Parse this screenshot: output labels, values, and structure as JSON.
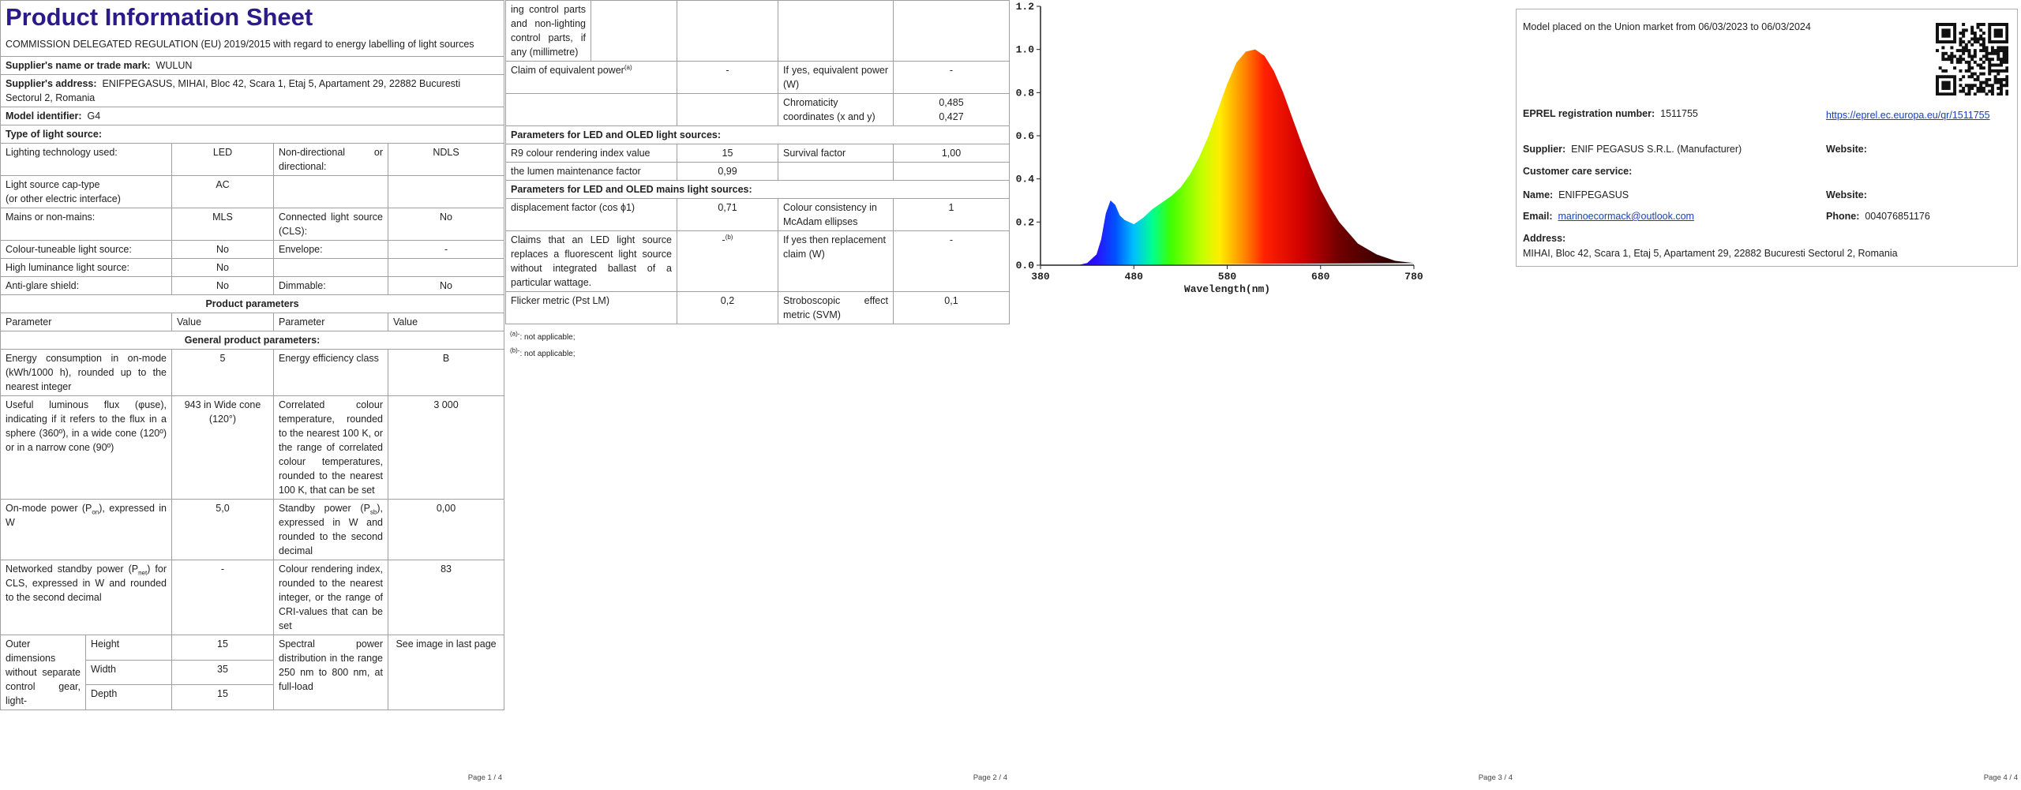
{
  "page1": {
    "title": "Product Information Sheet",
    "regulation": "COMMISSION DELEGATED REGULATION (EU) 2019/2015 with regard to energy labelling of light sources",
    "supplier_name": {
      "label": "Supplier's name or trade mark:",
      "value": "WULUN"
    },
    "supplier_address": {
      "label": "Supplier's address:",
      "value": "ENIFPEGASUS, MIHAI, Bloc 42, Scara 1, Etaj 5, Apartament 29, 22882 Bucuresti Sectorul 2, Romania"
    },
    "model_identifier": {
      "label": "Model identifier:",
      "value": "G4"
    },
    "type_heading": "Type of light source:",
    "type_rows": [
      [
        "Lighting technology used:",
        "LED",
        "Non-directional or directional:",
        "NDLS"
      ],
      [
        [
          "Light source cap-type",
          "(or other electric interface)"
        ],
        "AC"
      ],
      [
        "Mains or non-mains:",
        "MLS",
        "Connected light source (CLS):",
        "No"
      ],
      [
        "Colour-tuneable light source:",
        "No",
        "Envelope:",
        "-"
      ],
      [
        "High luminance light source:",
        "No"
      ],
      [
        "Anti-glare shield:",
        "No",
        "Dimmable:",
        "No"
      ]
    ],
    "product_heading": "Product parameters",
    "param_header": [
      "Parameter",
      "Value",
      "Parameter",
      "Value"
    ],
    "general_heading": "General product parameters:",
    "params": [
      [
        "Energy consumption in on-mode (kWh/1000 h), rounded up to the nearest integer",
        "5",
        "Energy efficiency class",
        "B"
      ],
      [
        "Useful luminous flux (φuse), indicating if it refers to the flux in a sphere (360º), in a wide cone (120º) or in a narrow cone (90º)",
        "943 in Wide cone (120°)",
        "Correlated colour temperature, rounded to the nearest 100 K, or the range of correlated colour temperatures, rounded to the nearest 100 K, that can be set",
        "3 000"
      ],
      [
        [
          "On-mode power (P",
          "on",
          "), expressed in W"
        ],
        "5,0",
        [
          "Standby power (P",
          "sb",
          "), expressed in W and rounded to the second decimal"
        ],
        "0,00"
      ],
      [
        [
          "Networked standby power (P",
          "net",
          ") for CLS, expressed in W and rounded to the second decimal"
        ],
        "-",
        "Colour rendering index, rounded to the nearest integer, or the range of CRI-values that can be set",
        "83"
      ]
    ],
    "dimensions": {
      "label": "Outer dimensions without separate control gear, light-",
      "items": [
        [
          "Height",
          "15"
        ],
        [
          "Width",
          "35"
        ],
        [
          "Depth",
          "15"
        ]
      ],
      "spd_label": "Spectral power distribution in the range 250 nm to 800 nm, at full-load",
      "spd_value": "See image in last page"
    },
    "footer": "Page 1 / 4"
  },
  "page2": {
    "continuation": "ing control parts and non-lighting control parts, if any (millimetre)",
    "claim_row": [
      [
        "Claim of equivalent power",
        "(a)"
      ],
      "-",
      "If yes, equivalent power (W)",
      "-"
    ],
    "chromaticity": {
      "label": "Chromaticity coordinates (x and y)",
      "values": [
        "0,485",
        "0,427"
      ]
    },
    "led_heading": "Parameters for LED and OLED light sources:",
    "led_rows": [
      [
        "R9 colour rendering index value",
        "15",
        "Survival factor",
        "1,00"
      ],
      [
        "the lumen maintenance factor",
        "0,99"
      ]
    ],
    "mains_heading": "Parameters for LED and OLED mains light sources:",
    "mains_rows": [
      [
        "displacement factor (cos ϕ1)",
        "0,71",
        "Colour consistency in McAdam ellipses",
        "1"
      ],
      [
        "Claims that an LED light source replaces a fluorescent light source without integrated ballast of a particular wattage.",
        [
          "-",
          "(b)"
        ],
        "If yes then replacement claim (W)",
        "-"
      ],
      [
        "Flicker metric (Pst LM)",
        "0,2",
        "Stroboscopic effect metric (SVM)",
        "0,1"
      ]
    ],
    "footnotes": [
      [
        "(a)",
        "-",
        ": not applicable;"
      ],
      [
        "(b)",
        "-",
        ": not applicable;"
      ]
    ],
    "footer": "Page 2 / 4"
  },
  "chart_data": {
    "type": "area",
    "x": [
      380,
      400,
      420,
      430,
      440,
      445,
      450,
      455,
      460,
      465,
      470,
      480,
      490,
      500,
      510,
      520,
      530,
      540,
      550,
      560,
      570,
      580,
      590,
      600,
      610,
      620,
      630,
      640,
      650,
      660,
      670,
      680,
      690,
      700,
      720,
      740,
      760,
      780
    ],
    "values": [
      0,
      0,
      0,
      0.01,
      0.05,
      0.12,
      0.24,
      0.3,
      0.28,
      0.23,
      0.21,
      0.19,
      0.22,
      0.26,
      0.29,
      0.32,
      0.36,
      0.42,
      0.5,
      0.6,
      0.72,
      0.84,
      0.94,
      0.99,
      1.0,
      0.97,
      0.9,
      0.8,
      0.68,
      0.56,
      0.45,
      0.35,
      0.27,
      0.2,
      0.1,
      0.05,
      0.02,
      0.01
    ],
    "xlim": [
      380,
      780
    ],
    "ylim": [
      0,
      1.2
    ],
    "xticks": [
      380,
      480,
      580,
      680,
      780
    ],
    "yticks": [
      {
        "value": 0,
        "label": "0.0"
      },
      0.2,
      0.4,
      0.6,
      0.8,
      {
        "value": 1,
        "label": "1.0"
      },
      1.2
    ],
    "xlabel": "Wavelength(nm)",
    "grid": false
  },
  "page3": {
    "footer": "Page 3 / 4"
  },
  "page4": {
    "market": "Model placed on the Union market from 06/03/2023 to 06/03/2024",
    "eprel": {
      "label": "EPREL registration number:",
      "value": "1511755",
      "link": "https://eprel.ec.europa.eu/qr/1511755"
    },
    "supplier": {
      "label": "Supplier:",
      "value": "ENIF PEGASUS S.R.L. (Manufacturer)",
      "website": "Website:"
    },
    "customer_care": "Customer care service:",
    "name": {
      "label": "Name:",
      "value": "ENIFPEGASUS",
      "website": "Website:"
    },
    "email": {
      "label": "Email:",
      "value": "marinoecormack@outlook.com"
    },
    "phone": {
      "label": "Phone:",
      "value": "004076851176"
    },
    "address": {
      "label": "Address:",
      "value": "MIHAI, Bloc 42, Scara 1, Etaj 5, Apartament 29, 22882 Bucuresti Sectorul 2, Romania"
    },
    "footer": "Page 4 / 4"
  }
}
